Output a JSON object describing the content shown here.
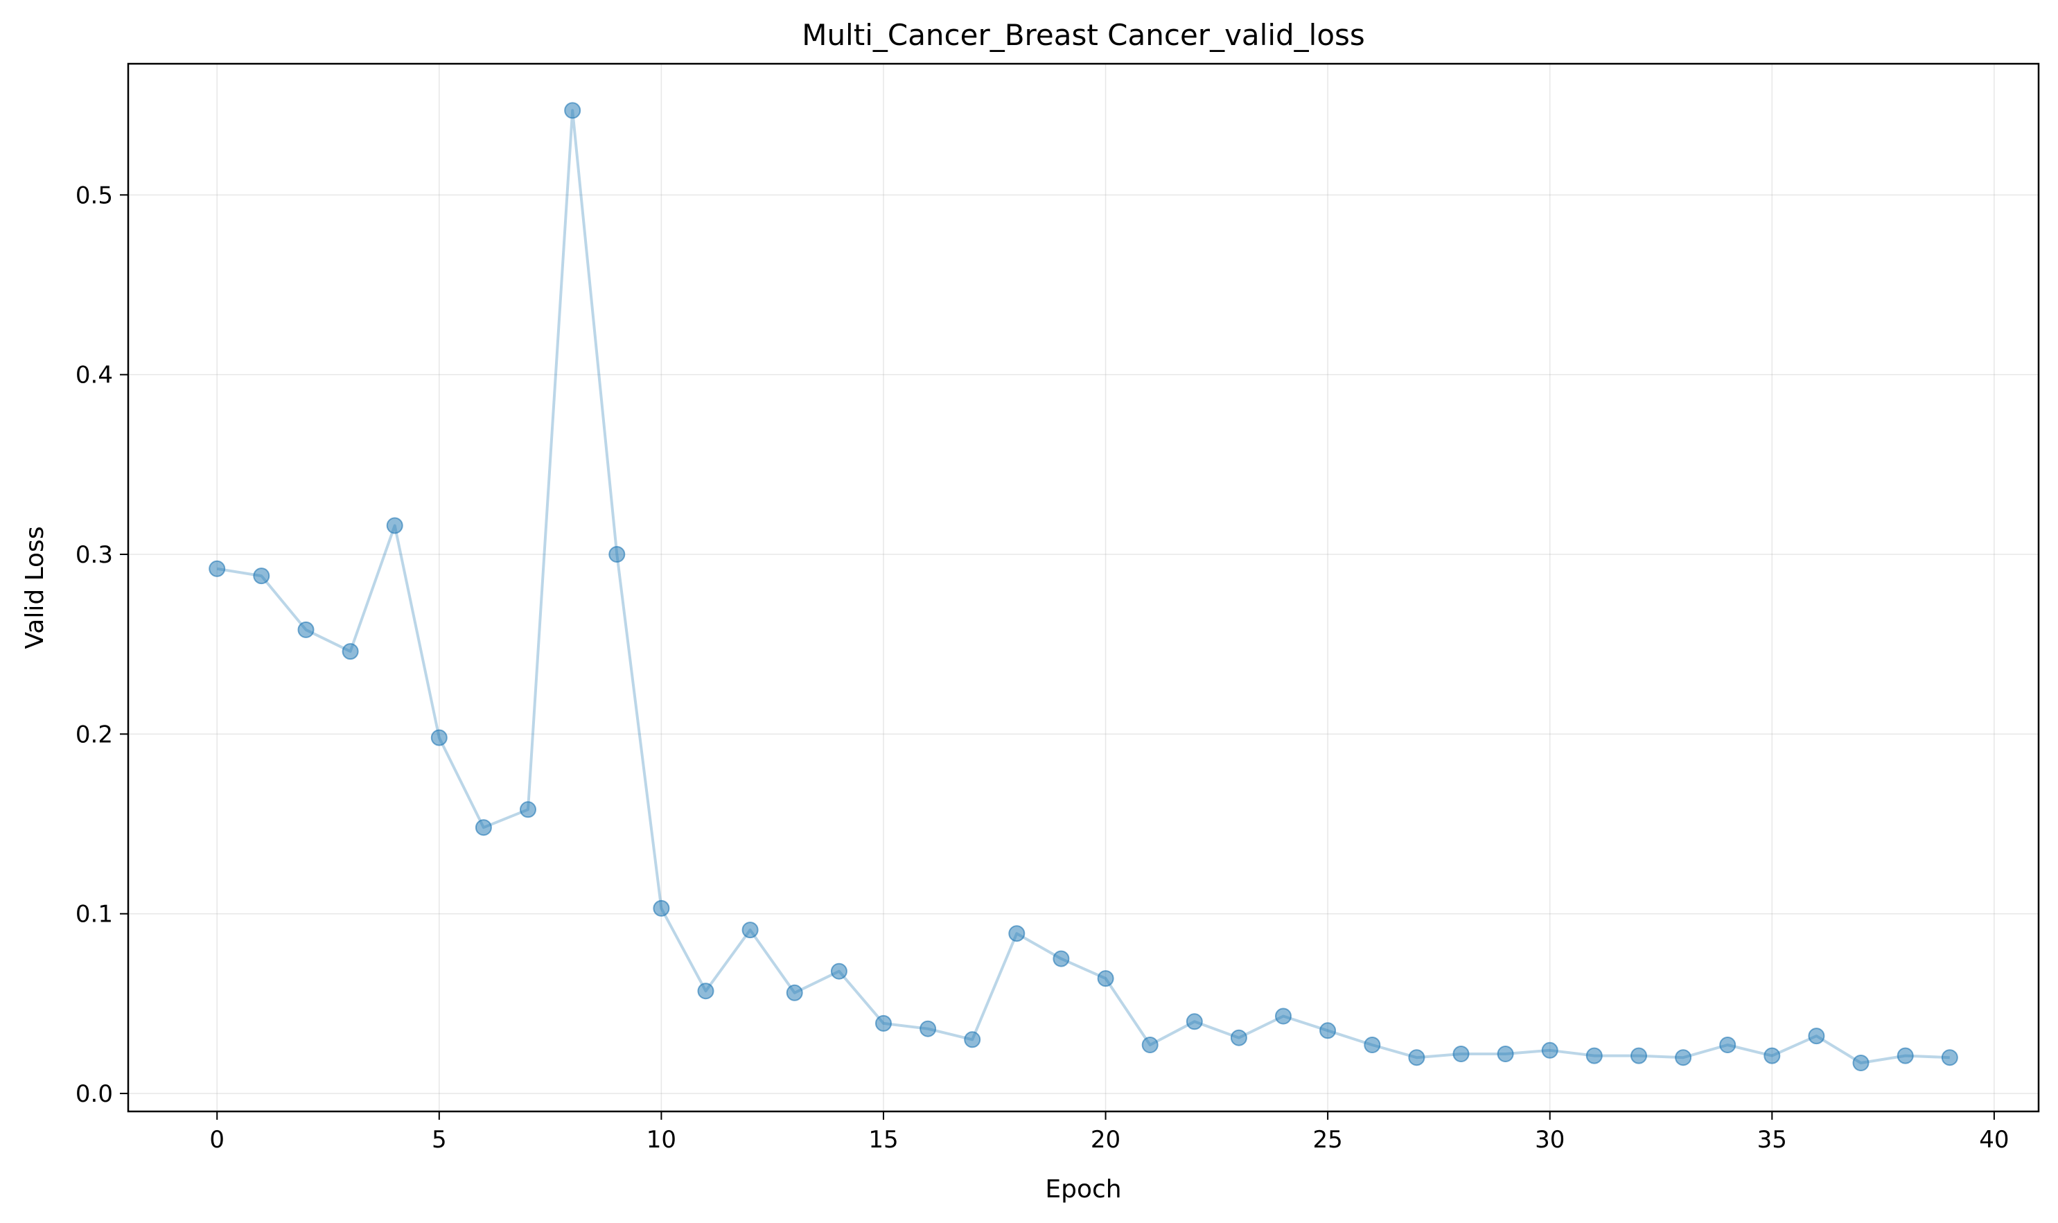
{
  "chart_data": {
    "type": "line",
    "title": "Multi_Cancer_Breast Cancer_valid_loss",
    "xlabel": "Epoch",
    "ylabel": "Valid Loss",
    "xlim": [
      -2,
      41
    ],
    "ylim": [
      -0.01,
      0.573
    ],
    "xticks": [
      0,
      5,
      10,
      15,
      20,
      25,
      30,
      35,
      40
    ],
    "xtick_labels": [
      "0",
      "5",
      "10",
      "15",
      "20",
      "25",
      "30",
      "35",
      "40"
    ],
    "yticks": [
      0.0,
      0.1,
      0.2,
      0.3,
      0.4,
      0.5
    ],
    "ytick_labels": [
      "0.0",
      "0.1",
      "0.2",
      "0.3",
      "0.4",
      "0.5"
    ],
    "grid": true,
    "color": "#1f77b4",
    "series": [
      {
        "x": [
          0,
          1,
          2,
          3,
          4,
          5,
          6,
          7,
          8,
          9,
          10,
          11,
          12,
          13,
          14,
          15,
          16,
          17,
          18,
          19,
          20,
          21,
          22,
          23,
          24,
          25,
          26,
          27,
          28,
          29,
          30,
          31,
          32,
          33,
          34,
          35,
          36,
          37,
          38,
          39
        ],
        "values": [
          0.292,
          0.288,
          0.258,
          0.246,
          0.316,
          0.198,
          0.148,
          0.158,
          0.547,
          0.3,
          0.103,
          0.057,
          0.091,
          0.056,
          0.068,
          0.039,
          0.036,
          0.03,
          0.089,
          0.075,
          0.064,
          0.027,
          0.04,
          0.031,
          0.043,
          0.035,
          0.027,
          0.02,
          0.022,
          0.022,
          0.024,
          0.021,
          0.021,
          0.02,
          0.027,
          0.021,
          0.032,
          0.017,
          0.021,
          0.02
        ]
      }
    ]
  }
}
